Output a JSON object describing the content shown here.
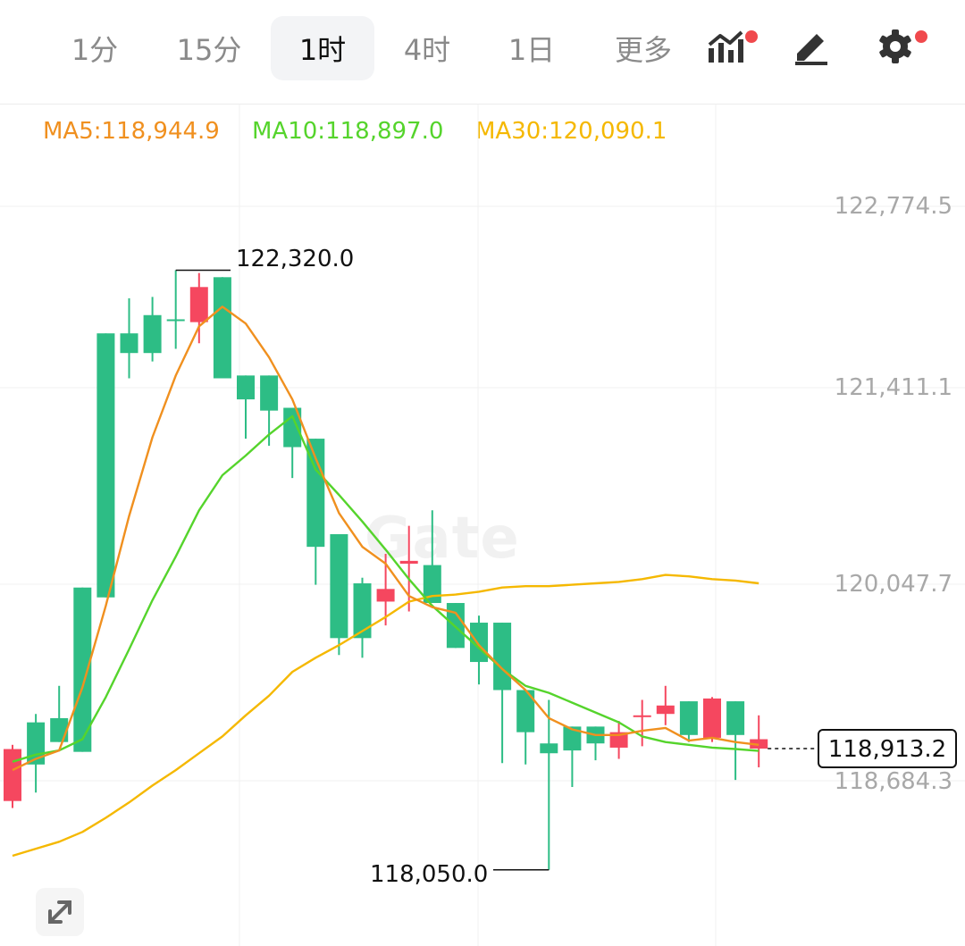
{
  "tabs": [
    {
      "label": "1分",
      "active": false
    },
    {
      "label": "15分",
      "active": false
    },
    {
      "label": "1时",
      "active": true
    },
    {
      "label": "4时",
      "active": false
    },
    {
      "label": "1日",
      "active": false
    },
    {
      "label": "更多",
      "active": false
    }
  ],
  "toolbar_icons": [
    "indicator-icon",
    "draw-pencil-icon",
    "gear-icon"
  ],
  "indicators": {
    "ma5": "MA5:118,944.9",
    "ma10": "MA10:118,897.0",
    "ma30": "MA30:120,090.1"
  },
  "colors": {
    "up": "#2dbd85",
    "down": "#f5475f",
    "ma5": "#f0901f",
    "ma10": "#55d42c",
    "ma30": "#f5b800",
    "notification_dot": "#f0494d"
  },
  "watermark": "Gate",
  "chart_data": {
    "type": "candlestick",
    "interval": "1时",
    "y_axis_ticks": [
      122774.5,
      121411.1,
      120047.7,
      118684.3
    ],
    "y_axis_labels": [
      "122,774.5",
      "121,411.1",
      "120,047.7",
      "118,684.3"
    ],
    "high_label": "122,320.0",
    "low_label": "118,050.0",
    "last_price_label": "118,913.2",
    "candles": [
      {
        "o": 118910,
        "h": 118940,
        "c": 118540,
        "l": 118490
      },
      {
        "o": 118800,
        "h": 119160,
        "c": 119100,
        "l": 118600
      },
      {
        "o": 118960,
        "h": 119360,
        "c": 119130,
        "l": 118960
      },
      {
        "o": 118890,
        "h": 120060,
        "c": 120060,
        "l": 118890
      },
      {
        "o": 119990,
        "h": 121870,
        "c": 121870,
        "l": 119990
      },
      {
        "o": 121730,
        "h": 122120,
        "c": 121870,
        "l": 121550
      },
      {
        "o": 121730,
        "h": 122130,
        "c": 122000,
        "l": 121670
      },
      {
        "o": 121970,
        "h": 122320,
        "c": 121970,
        "l": 121760
      },
      {
        "o": 122200,
        "h": 122300,
        "c": 121950,
        "l": 121800
      },
      {
        "o": 121550,
        "h": 122270,
        "c": 122270,
        "l": 121550
      },
      {
        "o": 121400,
        "h": 121570,
        "c": 121570,
        "l": 121120
      },
      {
        "o": 121320,
        "h": 121570,
        "c": 121570,
        "l": 121070
      },
      {
        "o": 121060,
        "h": 121340,
        "c": 121340,
        "l": 120840
      },
      {
        "o": 120350,
        "h": 121120,
        "c": 121120,
        "l": 120080
      },
      {
        "o": 119700,
        "h": 120440,
        "c": 120440,
        "l": 119580
      },
      {
        "o": 119700,
        "h": 120130,
        "c": 120090,
        "l": 119560
      },
      {
        "o": 120050,
        "h": 120300,
        "c": 119960,
        "l": 119790
      },
      {
        "o": 120250,
        "h": 120500,
        "c": 120230,
        "l": 119890
      },
      {
        "o": 119950,
        "h": 120610,
        "c": 120220,
        "l": 119950
      },
      {
        "o": 119630,
        "h": 119950,
        "c": 119950,
        "l": 119630
      },
      {
        "o": 119530,
        "h": 119860,
        "c": 119810,
        "l": 119370
      },
      {
        "o": 119330,
        "h": 119810,
        "c": 119810,
        "l": 118810
      },
      {
        "o": 119030,
        "h": 119330,
        "c": 119330,
        "l": 118800
      },
      {
        "o": 118880,
        "h": 119260,
        "c": 118950,
        "l": 118050
      },
      {
        "o": 118900,
        "h": 119070,
        "c": 119070,
        "l": 118640
      },
      {
        "o": 118950,
        "h": 119070,
        "c": 119070,
        "l": 118830
      },
      {
        "o": 119030,
        "h": 119110,
        "c": 118920,
        "l": 118840
      },
      {
        "o": 119150,
        "h": 119260,
        "c": 119140,
        "l": 118930
      },
      {
        "o": 119220,
        "h": 119360,
        "c": 119160,
        "l": 119080
      },
      {
        "o": 119010,
        "h": 119250,
        "c": 119250,
        "l": 118960
      },
      {
        "o": 119270,
        "h": 119280,
        "c": 118990,
        "l": 118960
      },
      {
        "o": 119010,
        "h": 119250,
        "c": 119250,
        "l": 118690
      },
      {
        "o": 118980,
        "h": 119150,
        "c": 118913.2,
        "l": 118780
      }
    ],
    "ma5": [
      118760,
      118840,
      118900,
      119350,
      119930,
      120570,
      121130,
      121570,
      121920,
      122060,
      121940,
      121700,
      121400,
      120980,
      120590,
      120350,
      120230,
      120000,
      119920,
      119880,
      119650,
      119480,
      119330,
      119130,
      119050,
      119010,
      119010,
      119040,
      119060,
      118970,
      118990,
      118960,
      118940
    ],
    "ma10": [
      118820,
      118870,
      118900,
      118980,
      119280,
      119620,
      119970,
      120280,
      120610,
      120860,
      121000,
      121150,
      121280,
      120900,
      120720,
      120530,
      120330,
      120120,
      119930,
      119780,
      119630,
      119480,
      119360,
      119310,
      119240,
      119170,
      119100,
      119000,
      118960,
      118940,
      118920,
      118910,
      118897
    ],
    "ma30": [
      118150,
      118200,
      118250,
      118320,
      118420,
      118530,
      118650,
      118760,
      118880,
      119000,
      119150,
      119290,
      119460,
      119560,
      119650,
      119750,
      119850,
      119960,
      120000,
      120010,
      120030,
      120060,
      120070,
      120070,
      120080,
      120090,
      120100,
      120120,
      120150,
      120140,
      120120,
      120110,
      120090
    ]
  }
}
